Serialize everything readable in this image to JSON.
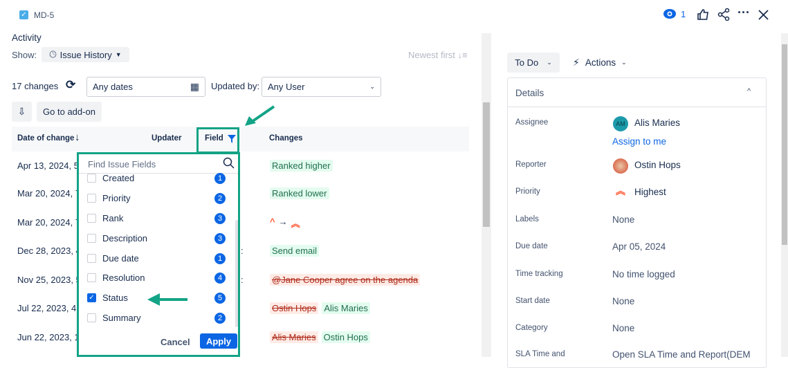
{
  "header": {
    "issue_key": "MD-5",
    "watch_count": "1"
  },
  "activity": {
    "title": "Activity",
    "show_label": "Show:",
    "show_value": "Issue History",
    "sort_label": "Newest first",
    "changes_count": "17 changes",
    "dates_value": "Any dates",
    "updated_by_label": "Updated by:",
    "user_value": "Any User",
    "addon_button": "Go to add-on"
  },
  "table": {
    "headers": [
      "Date of change",
      "Updater",
      "Field",
      "Changes"
    ],
    "rows": [
      {
        "date": "Apr 13, 2024, 5:",
        "added": "Ranked higher"
      },
      {
        "date": "Mar 20, 2024, 7",
        "added": "Ranked lower"
      },
      {
        "date": "Mar 20, 2024, 7",
        "added": ""
      },
      {
        "date": "Dec 28, 2023, 4:",
        "added": "Send email"
      },
      {
        "date": "Nov 25, 2023, 5",
        "removed": "@Jane Cooper agree on the agenda"
      },
      {
        "date": "Jul 22, 2023, 4:0",
        "removed": "Ostin Hops",
        "added": "Alis Maries"
      },
      {
        "date": "Jun 22, 2023, 1",
        "removed": "Alis Maries",
        "added": "Ostin Hops"
      }
    ]
  },
  "field_filter": {
    "placeholder": "Find Issue Fields",
    "options": [
      {
        "label": "Created",
        "count": "1",
        "checked": false
      },
      {
        "label": "Priority",
        "count": "2",
        "checked": false
      },
      {
        "label": "Rank",
        "count": "3",
        "checked": false
      },
      {
        "label": "Description",
        "count": "3",
        "checked": false
      },
      {
        "label": "Due date",
        "count": "1",
        "checked": false
      },
      {
        "label": "Resolution",
        "count": "4",
        "checked": false
      },
      {
        "label": "Status",
        "count": "5",
        "checked": true
      },
      {
        "label": "Summary",
        "count": "2",
        "checked": false
      }
    ],
    "cancel": "Cancel",
    "apply": "Apply"
  },
  "side": {
    "status": "To Do",
    "actions": "Actions",
    "details_title": "Details",
    "fields": [
      {
        "label": "Assignee",
        "value": "Alis Maries",
        "avatar": "AM",
        "link": "Assign to me"
      },
      {
        "label": "Reporter",
        "value": "Ostin Hops"
      },
      {
        "label": "Priority",
        "value": "Highest"
      },
      {
        "label": "Labels",
        "value": "None"
      },
      {
        "label": "Due date",
        "value": "Apr 05, 2024"
      },
      {
        "label": "Time tracking",
        "value": "No time logged"
      },
      {
        "label": "Start date",
        "value": "None"
      },
      {
        "label": "Category",
        "value": "None"
      },
      {
        "label": "SLA Time and",
        "value": "Open SLA Time and Report(DEM"
      }
    ]
  },
  "colors": {
    "accent": "#0c66e4",
    "highlight": "#13a386",
    "priority": "#ff5630"
  }
}
